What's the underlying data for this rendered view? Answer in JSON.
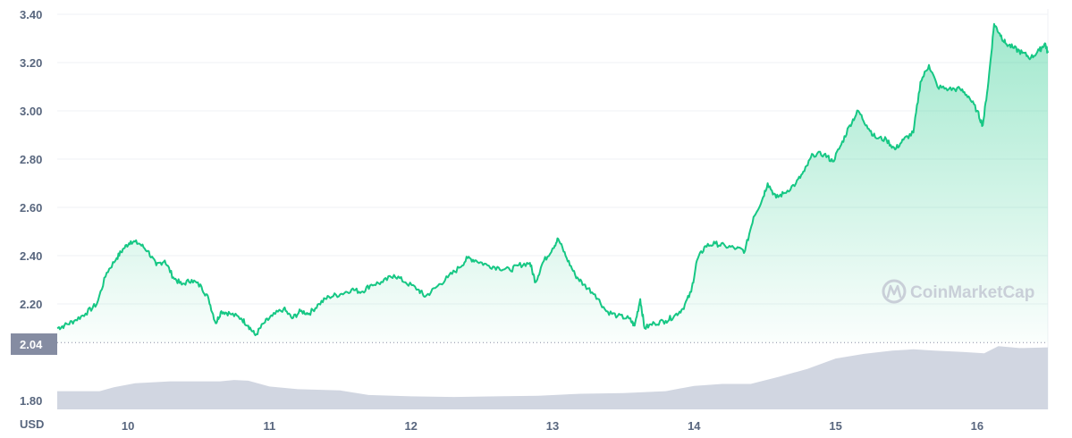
{
  "chart_data": {
    "type": "area",
    "unit_label": "USD",
    "watermark": "CoinMarketCap",
    "reference_value_label": "2.04",
    "reference_value": 2.04,
    "yticks": [
      {
        "value": 3.4,
        "label": "3.40"
      },
      {
        "value": 3.2,
        "label": "3.20"
      },
      {
        "value": 3.0,
        "label": "3.00"
      },
      {
        "value": 2.8,
        "label": "2.80"
      },
      {
        "value": 2.6,
        "label": "2.60"
      },
      {
        "value": 2.4,
        "label": "2.40"
      },
      {
        "value": 2.2,
        "label": "2.20"
      },
      {
        "value": 1.8,
        "label": "1.80"
      }
    ],
    "xticks": [
      {
        "value": 10,
        "label": "10"
      },
      {
        "value": 11,
        "label": "11"
      },
      {
        "value": 12,
        "label": "12"
      },
      {
        "value": 13,
        "label": "13"
      },
      {
        "value": 14,
        "label": "14"
      },
      {
        "value": 15,
        "label": "15"
      },
      {
        "value": 16,
        "label": "16"
      }
    ],
    "xlim": [
      9.5,
      16.5
    ],
    "ylim": [
      1.75,
      3.42
    ],
    "price": {
      "color": "#16c784",
      "points": [
        [
          9.5,
          2.1
        ],
        [
          9.55,
          2.11
        ],
        [
          9.62,
          2.13
        ],
        [
          9.7,
          2.16
        ],
        [
          9.78,
          2.2
        ],
        [
          9.85,
          2.33
        ],
        [
          9.92,
          2.39
        ],
        [
          9.97,
          2.43
        ],
        [
          10.02,
          2.46
        ],
        [
          10.08,
          2.45
        ],
        [
          10.14,
          2.42
        ],
        [
          10.2,
          2.36
        ],
        [
          10.26,
          2.38
        ],
        [
          10.32,
          2.31
        ],
        [
          10.38,
          2.28
        ],
        [
          10.45,
          2.3
        ],
        [
          10.52,
          2.27
        ],
        [
          10.57,
          2.22
        ],
        [
          10.62,
          2.12
        ],
        [
          10.66,
          2.17
        ],
        [
          10.72,
          2.16
        ],
        [
          10.8,
          2.14
        ],
        [
          10.85,
          2.11
        ],
        [
          10.9,
          2.07
        ],
        [
          10.96,
          2.12
        ],
        [
          11.02,
          2.15
        ],
        [
          11.1,
          2.18
        ],
        [
          11.16,
          2.14
        ],
        [
          11.22,
          2.17
        ],
        [
          11.28,
          2.16
        ],
        [
          11.35,
          2.2
        ],
        [
          11.42,
          2.23
        ],
        [
          11.5,
          2.24
        ],
        [
          11.58,
          2.26
        ],
        [
          11.65,
          2.25
        ],
        [
          11.72,
          2.28
        ],
        [
          11.8,
          2.29
        ],
        [
          11.88,
          2.32
        ],
        [
          11.96,
          2.29
        ],
        [
          12.05,
          2.26
        ],
        [
          12.1,
          2.23
        ],
        [
          12.18,
          2.27
        ],
        [
          12.26,
          2.31
        ],
        [
          12.34,
          2.35
        ],
        [
          12.4,
          2.39
        ],
        [
          12.46,
          2.38
        ],
        [
          12.54,
          2.36
        ],
        [
          12.62,
          2.35
        ],
        [
          12.7,
          2.34
        ],
        [
          12.76,
          2.36
        ],
        [
          12.84,
          2.37
        ],
        [
          12.88,
          2.29
        ],
        [
          12.93,
          2.37
        ],
        [
          13.0,
          2.43
        ],
        [
          13.04,
          2.47
        ],
        [
          13.1,
          2.39
        ],
        [
          13.16,
          2.32
        ],
        [
          13.22,
          2.28
        ],
        [
          13.3,
          2.24
        ],
        [
          13.38,
          2.17
        ],
        [
          13.46,
          2.15
        ],
        [
          13.54,
          2.14
        ],
        [
          13.58,
          2.11
        ],
        [
          13.62,
          2.22
        ],
        [
          13.65,
          2.1
        ],
        [
          13.72,
          2.12
        ],
        [
          13.8,
          2.13
        ],
        [
          13.86,
          2.15
        ],
        [
          13.92,
          2.18
        ],
        [
          13.98,
          2.25
        ],
        [
          14.02,
          2.38
        ],
        [
          14.08,
          2.44
        ],
        [
          14.15,
          2.45
        ],
        [
          14.22,
          2.44
        ],
        [
          14.3,
          2.43
        ],
        [
          14.36,
          2.42
        ],
        [
          14.42,
          2.56
        ],
        [
          14.48,
          2.63
        ],
        [
          14.52,
          2.7
        ],
        [
          14.58,
          2.64
        ],
        [
          14.64,
          2.66
        ],
        [
          14.72,
          2.7
        ],
        [
          14.78,
          2.75
        ],
        [
          14.84,
          2.82
        ],
        [
          14.92,
          2.82
        ],
        [
          14.98,
          2.79
        ],
        [
          15.04,
          2.86
        ],
        [
          15.1,
          2.94
        ],
        [
          15.16,
          3.0
        ],
        [
          15.22,
          2.94
        ],
        [
          15.28,
          2.89
        ],
        [
          15.36,
          2.88
        ],
        [
          15.42,
          2.84
        ],
        [
          15.48,
          2.88
        ],
        [
          15.55,
          2.91
        ],
        [
          15.6,
          3.12
        ],
        [
          15.66,
          3.19
        ],
        [
          15.72,
          3.1
        ],
        [
          15.8,
          3.09
        ],
        [
          15.88,
          3.09
        ],
        [
          15.94,
          3.06
        ],
        [
          16.0,
          3.0
        ],
        [
          16.04,
          2.94
        ],
        [
          16.08,
          3.12
        ],
        [
          16.12,
          3.36
        ],
        [
          16.16,
          3.32
        ],
        [
          16.2,
          3.28
        ],
        [
          16.26,
          3.26
        ],
        [
          16.32,
          3.24
        ],
        [
          16.38,
          3.22
        ],
        [
          16.44,
          3.25
        ],
        [
          16.48,
          3.28
        ],
        [
          16.5,
          3.24
        ]
      ]
    },
    "volume": {
      "color": "#d1d6e1",
      "points": [
        [
          9.5,
          0.28
        ],
        [
          9.8,
          0.28
        ],
        [
          9.9,
          0.34
        ],
        [
          10.05,
          0.4
        ],
        [
          10.3,
          0.43
        ],
        [
          10.5,
          0.43
        ],
        [
          10.65,
          0.43
        ],
        [
          10.75,
          0.45
        ],
        [
          10.85,
          0.44
        ],
        [
          11.0,
          0.35
        ],
        [
          11.2,
          0.31
        ],
        [
          11.5,
          0.29
        ],
        [
          11.7,
          0.22
        ],
        [
          12.0,
          0.2
        ],
        [
          12.3,
          0.19
        ],
        [
          12.6,
          0.2
        ],
        [
          12.9,
          0.21
        ],
        [
          13.2,
          0.24
        ],
        [
          13.5,
          0.25
        ],
        [
          13.8,
          0.28
        ],
        [
          14.0,
          0.36
        ],
        [
          14.2,
          0.39
        ],
        [
          14.4,
          0.39
        ],
        [
          14.6,
          0.5
        ],
        [
          14.8,
          0.62
        ],
        [
          15.0,
          0.78
        ],
        [
          15.2,
          0.85
        ],
        [
          15.4,
          0.9
        ],
        [
          15.55,
          0.92
        ],
        [
          15.7,
          0.9
        ],
        [
          15.9,
          0.88
        ],
        [
          16.05,
          0.86
        ],
        [
          16.15,
          0.97
        ],
        [
          16.3,
          0.94
        ],
        [
          16.5,
          0.95
        ]
      ]
    }
  }
}
